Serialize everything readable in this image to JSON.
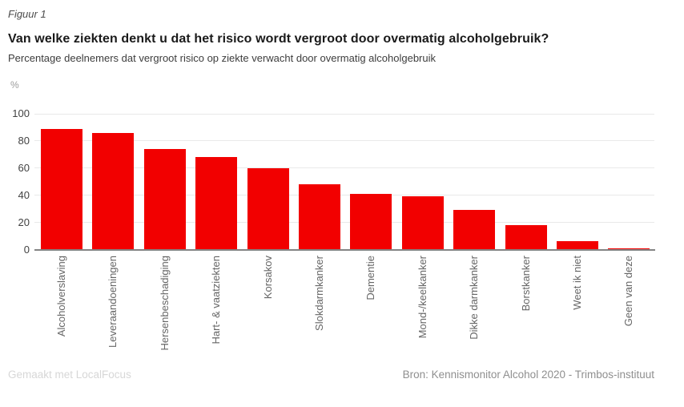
{
  "figure_label": "Figuur 1",
  "header": {
    "title": "Van welke ziekten denkt u dat het risico wordt vergroot door overmatig alcoholgebruik?",
    "subtitle": "Percentage deelnemers dat vergroot risico op ziekte verwacht door overmatig alcoholgebruik"
  },
  "footer": {
    "credit": "Gemaakt met LocalFocus",
    "source": "Bron: Kennismonitor Alcohol 2020 - Trimbos-instituut"
  },
  "colors": {
    "bar": "#f20000",
    "gridline": "#e9e9e9",
    "baseline": "#848484",
    "ytick_text": "#424242",
    "xtick_text": "#666666"
  },
  "chart_data": {
    "type": "bar",
    "title": "Van welke ziekten denkt u dat het risico wordt vergroot door overmatig alcoholgebruik?",
    "subtitle": "Percentage deelnemers dat vergroot risico op ziekte verwacht door overmatig alcoholgebruik",
    "categories": [
      "Alcoholverslaving",
      "Leveraandoeningen",
      "Hersenbeschadiging",
      "Hart- & vaatziekten",
      "Korsakov",
      "Slokdarmkanker",
      "Dementie",
      "Mond-/keelkanker",
      "Dikke darmkanker",
      "Borstkanker",
      "Weet ik niet",
      "Geen van deze"
    ],
    "values": [
      89,
      86,
      74,
      68,
      60,
      48,
      41,
      39,
      29,
      18,
      6,
      1
    ],
    "xlabel": "",
    "ylabel": "%",
    "ylim": [
      0,
      100
    ],
    "yticks": [
      0,
      20,
      40,
      60,
      80,
      100
    ],
    "grid": true,
    "legend": false,
    "bar_color": "#f20000"
  }
}
